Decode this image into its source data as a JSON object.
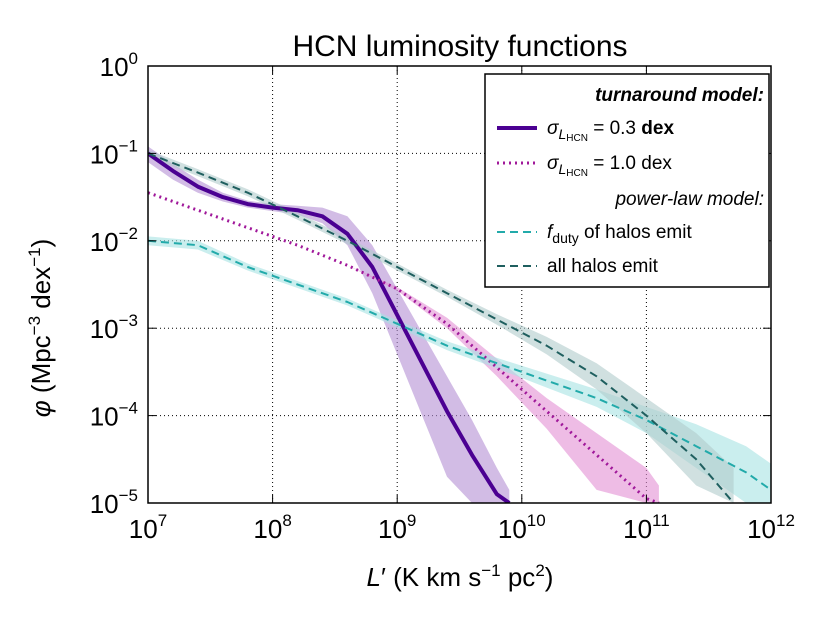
{
  "chart_data": {
    "type": "line",
    "title": "HCN luminosity functions",
    "xlabel": {
      "main": "L",
      "prime": "′",
      "units": "(K km s",
      "unit_sup": "−1",
      "units_end": "pc",
      "units_end_sup": "2",
      "close": ")"
    },
    "ylabel": {
      "main": "φ",
      "units": "(Mpc",
      "unit_sup": "−3",
      "units_mid": "dex",
      "units_mid_sup": "−1",
      "close": ")"
    },
    "xscale": "log",
    "yscale": "log",
    "xlim": [
      10000000,
      1000000000000
    ],
    "ylim": [
      1e-05,
      1
    ],
    "grid": true,
    "x_ticks": [
      {
        "base": "10",
        "exp": "7",
        "value": 7
      },
      {
        "base": "10",
        "exp": "8",
        "value": 8
      },
      {
        "base": "10",
        "exp": "9",
        "value": 9
      },
      {
        "base": "10",
        "exp": "10",
        "value": 10
      },
      {
        "base": "10",
        "exp": "11",
        "value": 11
      },
      {
        "base": "10",
        "exp": "12",
        "value": 12
      }
    ],
    "y_ticks": [
      {
        "base": "10",
        "exp": "0",
        "value": 0
      },
      {
        "base": "10",
        "exp": "−1",
        "value": -1
      },
      {
        "base": "10",
        "exp": "−2",
        "value": -2
      },
      {
        "base": "10",
        "exp": "−3",
        "value": -3
      },
      {
        "base": "10",
        "exp": "−4",
        "value": -4
      },
      {
        "base": "10",
        "exp": "−5",
        "value": -5
      }
    ],
    "legend": {
      "placement": "top-right",
      "header_turnaround": "turnaround model:",
      "header_powerlaw": "power-law model:",
      "entry_sigma": "σ",
      "entry_sub": "L",
      "entry_subsub": "HCN",
      "entry_03_value": " = 0.3 ",
      "entry_03_bold": "dex",
      "entry_10_value": " = 1.0 dex",
      "entry_fduty": "f",
      "entry_fduty_sub": "duty",
      "entry_fduty_rest": " of halos emit",
      "entry_all": "all halos emit"
    },
    "series": [
      {
        "name": "turnaround σ=0.3 dex",
        "color": "#4b0092",
        "style": "solid",
        "width": 4,
        "points": [
          [
            7.0,
            -1.0
          ],
          [
            7.2,
            -1.2
          ],
          [
            7.4,
            -1.38
          ],
          [
            7.6,
            -1.5
          ],
          [
            7.8,
            -1.58
          ],
          [
            8.0,
            -1.62
          ],
          [
            8.2,
            -1.65
          ],
          [
            8.4,
            -1.72
          ],
          [
            8.6,
            -1.92
          ],
          [
            8.8,
            -2.3
          ],
          [
            9.0,
            -2.85
          ],
          [
            9.2,
            -3.4
          ],
          [
            9.4,
            -3.95
          ],
          [
            9.6,
            -4.45
          ],
          [
            9.8,
            -4.9
          ],
          [
            9.9,
            -5.0
          ]
        ],
        "band_color": "#b490d4",
        "band_lo": [
          -1.1,
          -1.3,
          -1.45,
          -1.55,
          -1.62,
          -1.66,
          -1.7,
          -1.8,
          -2.05,
          -2.6,
          -3.3,
          -4.0,
          -4.7,
          -5.0,
          -5.0,
          -5.0
        ],
        "band_hi": [
          -0.92,
          -1.12,
          -1.3,
          -1.45,
          -1.54,
          -1.58,
          -1.6,
          -1.62,
          -1.72,
          -2.05,
          -2.55,
          -3.05,
          -3.55,
          -4.05,
          -4.6,
          -4.85
        ]
      },
      {
        "name": "turnaround σ=1.0 dex",
        "color": "#a0189a",
        "style": "dotted",
        "width": 3,
        "points": [
          [
            7.0,
            -1.45
          ],
          [
            7.4,
            -1.65
          ],
          [
            7.8,
            -1.85
          ],
          [
            8.2,
            -2.05
          ],
          [
            8.6,
            -2.28
          ],
          [
            9.0,
            -2.55
          ],
          [
            9.4,
            -2.95
          ],
          [
            9.8,
            -3.45
          ],
          [
            10.2,
            -3.95
          ],
          [
            10.6,
            -4.45
          ],
          [
            11.0,
            -4.95
          ],
          [
            11.1,
            -5.0
          ]
        ],
        "band_color": "#e290d4",
        "band_lo": [
          -1.45,
          -1.65,
          -1.85,
          -2.05,
          -2.28,
          -2.57,
          -3.0,
          -3.55,
          -4.15,
          -4.85,
          -5.0,
          -5.0
        ],
        "band_hi": [
          -1.45,
          -1.65,
          -1.85,
          -2.05,
          -2.28,
          -2.53,
          -2.88,
          -3.35,
          -3.8,
          -4.2,
          -4.6,
          -4.8
        ]
      },
      {
        "name": "fduty of halos emit",
        "color": "#22aaaa",
        "style": "dashed",
        "width": 2,
        "points": [
          [
            7.0,
            -2.0
          ],
          [
            7.4,
            -2.05
          ],
          [
            7.8,
            -2.3
          ],
          [
            8.2,
            -2.5
          ],
          [
            8.6,
            -2.7
          ],
          [
            9.0,
            -2.95
          ],
          [
            9.4,
            -3.2
          ],
          [
            9.8,
            -3.4
          ],
          [
            10.2,
            -3.6
          ],
          [
            10.6,
            -3.8
          ],
          [
            11.0,
            -4.05
          ],
          [
            11.4,
            -4.35
          ],
          [
            11.8,
            -4.65
          ],
          [
            12.0,
            -4.85
          ]
        ],
        "band_color": "#a6e2e2",
        "band_lo": [
          -2.05,
          -2.1,
          -2.34,
          -2.54,
          -2.74,
          -2.99,
          -3.25,
          -3.46,
          -3.68,
          -3.9,
          -4.2,
          -4.6,
          -5.0,
          -5.0
        ],
        "band_hi": [
          -1.95,
          -2.0,
          -2.26,
          -2.46,
          -2.66,
          -2.91,
          -3.15,
          -3.34,
          -3.52,
          -3.7,
          -3.9,
          -4.1,
          -4.35,
          -4.55
        ]
      },
      {
        "name": "all halos emit",
        "color": "#1f5f5f",
        "style": "dashed",
        "width": 2,
        "points": [
          [
            7.0,
            -1.0
          ],
          [
            7.4,
            -1.22
          ],
          [
            7.8,
            -1.45
          ],
          [
            8.2,
            -1.72
          ],
          [
            8.6,
            -2.0
          ],
          [
            9.0,
            -2.3
          ],
          [
            9.4,
            -2.6
          ],
          [
            9.8,
            -2.9
          ],
          [
            10.2,
            -3.2
          ],
          [
            10.6,
            -3.55
          ],
          [
            11.0,
            -4.0
          ],
          [
            11.4,
            -4.5
          ],
          [
            11.7,
            -5.0
          ]
        ],
        "band_color": "#b0cccc",
        "band_lo": [
          -1.04,
          -1.26,
          -1.49,
          -1.76,
          -2.04,
          -2.34,
          -2.64,
          -2.96,
          -3.3,
          -3.7,
          -4.2,
          -4.8,
          -5.0
        ],
        "band_hi": [
          -0.96,
          -1.18,
          -1.41,
          -1.68,
          -1.96,
          -2.26,
          -2.56,
          -2.84,
          -3.1,
          -3.4,
          -3.8,
          -4.2,
          -4.6
        ]
      }
    ]
  }
}
